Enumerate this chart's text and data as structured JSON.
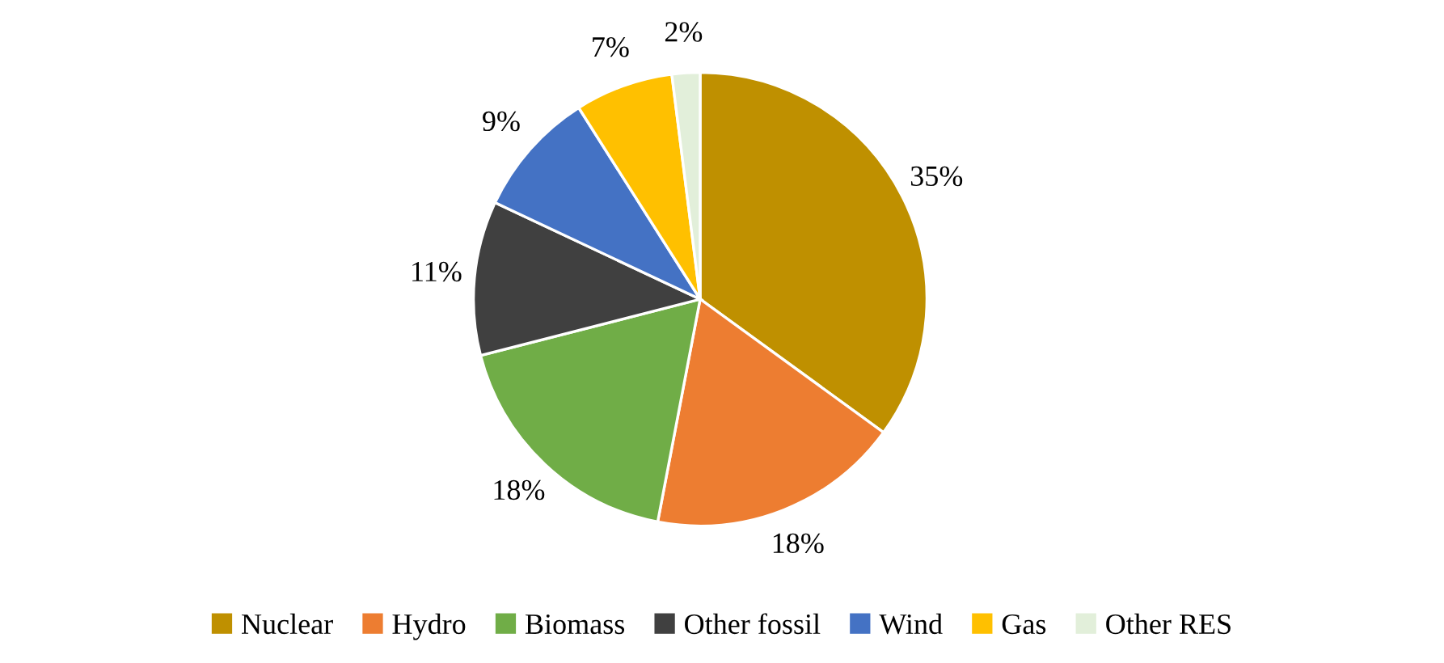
{
  "chart_data": {
    "type": "pie",
    "categories": [
      "Nuclear",
      "Hydro",
      "Biomass",
      "Other fossil",
      "Wind",
      "Gas",
      "Other RES"
    ],
    "values": [
      35,
      18,
      18,
      11,
      9,
      7,
      2
    ],
    "value_labels": [
      "35%",
      "18%",
      "18%",
      "11%",
      "9%",
      "7%",
      "2%"
    ],
    "colors": [
      "#bf9000",
      "#ed7d31",
      "#70ad47",
      "#404040",
      "#4472c4",
      "#ffc000",
      "#e2efda"
    ],
    "legend": "bottom"
  }
}
